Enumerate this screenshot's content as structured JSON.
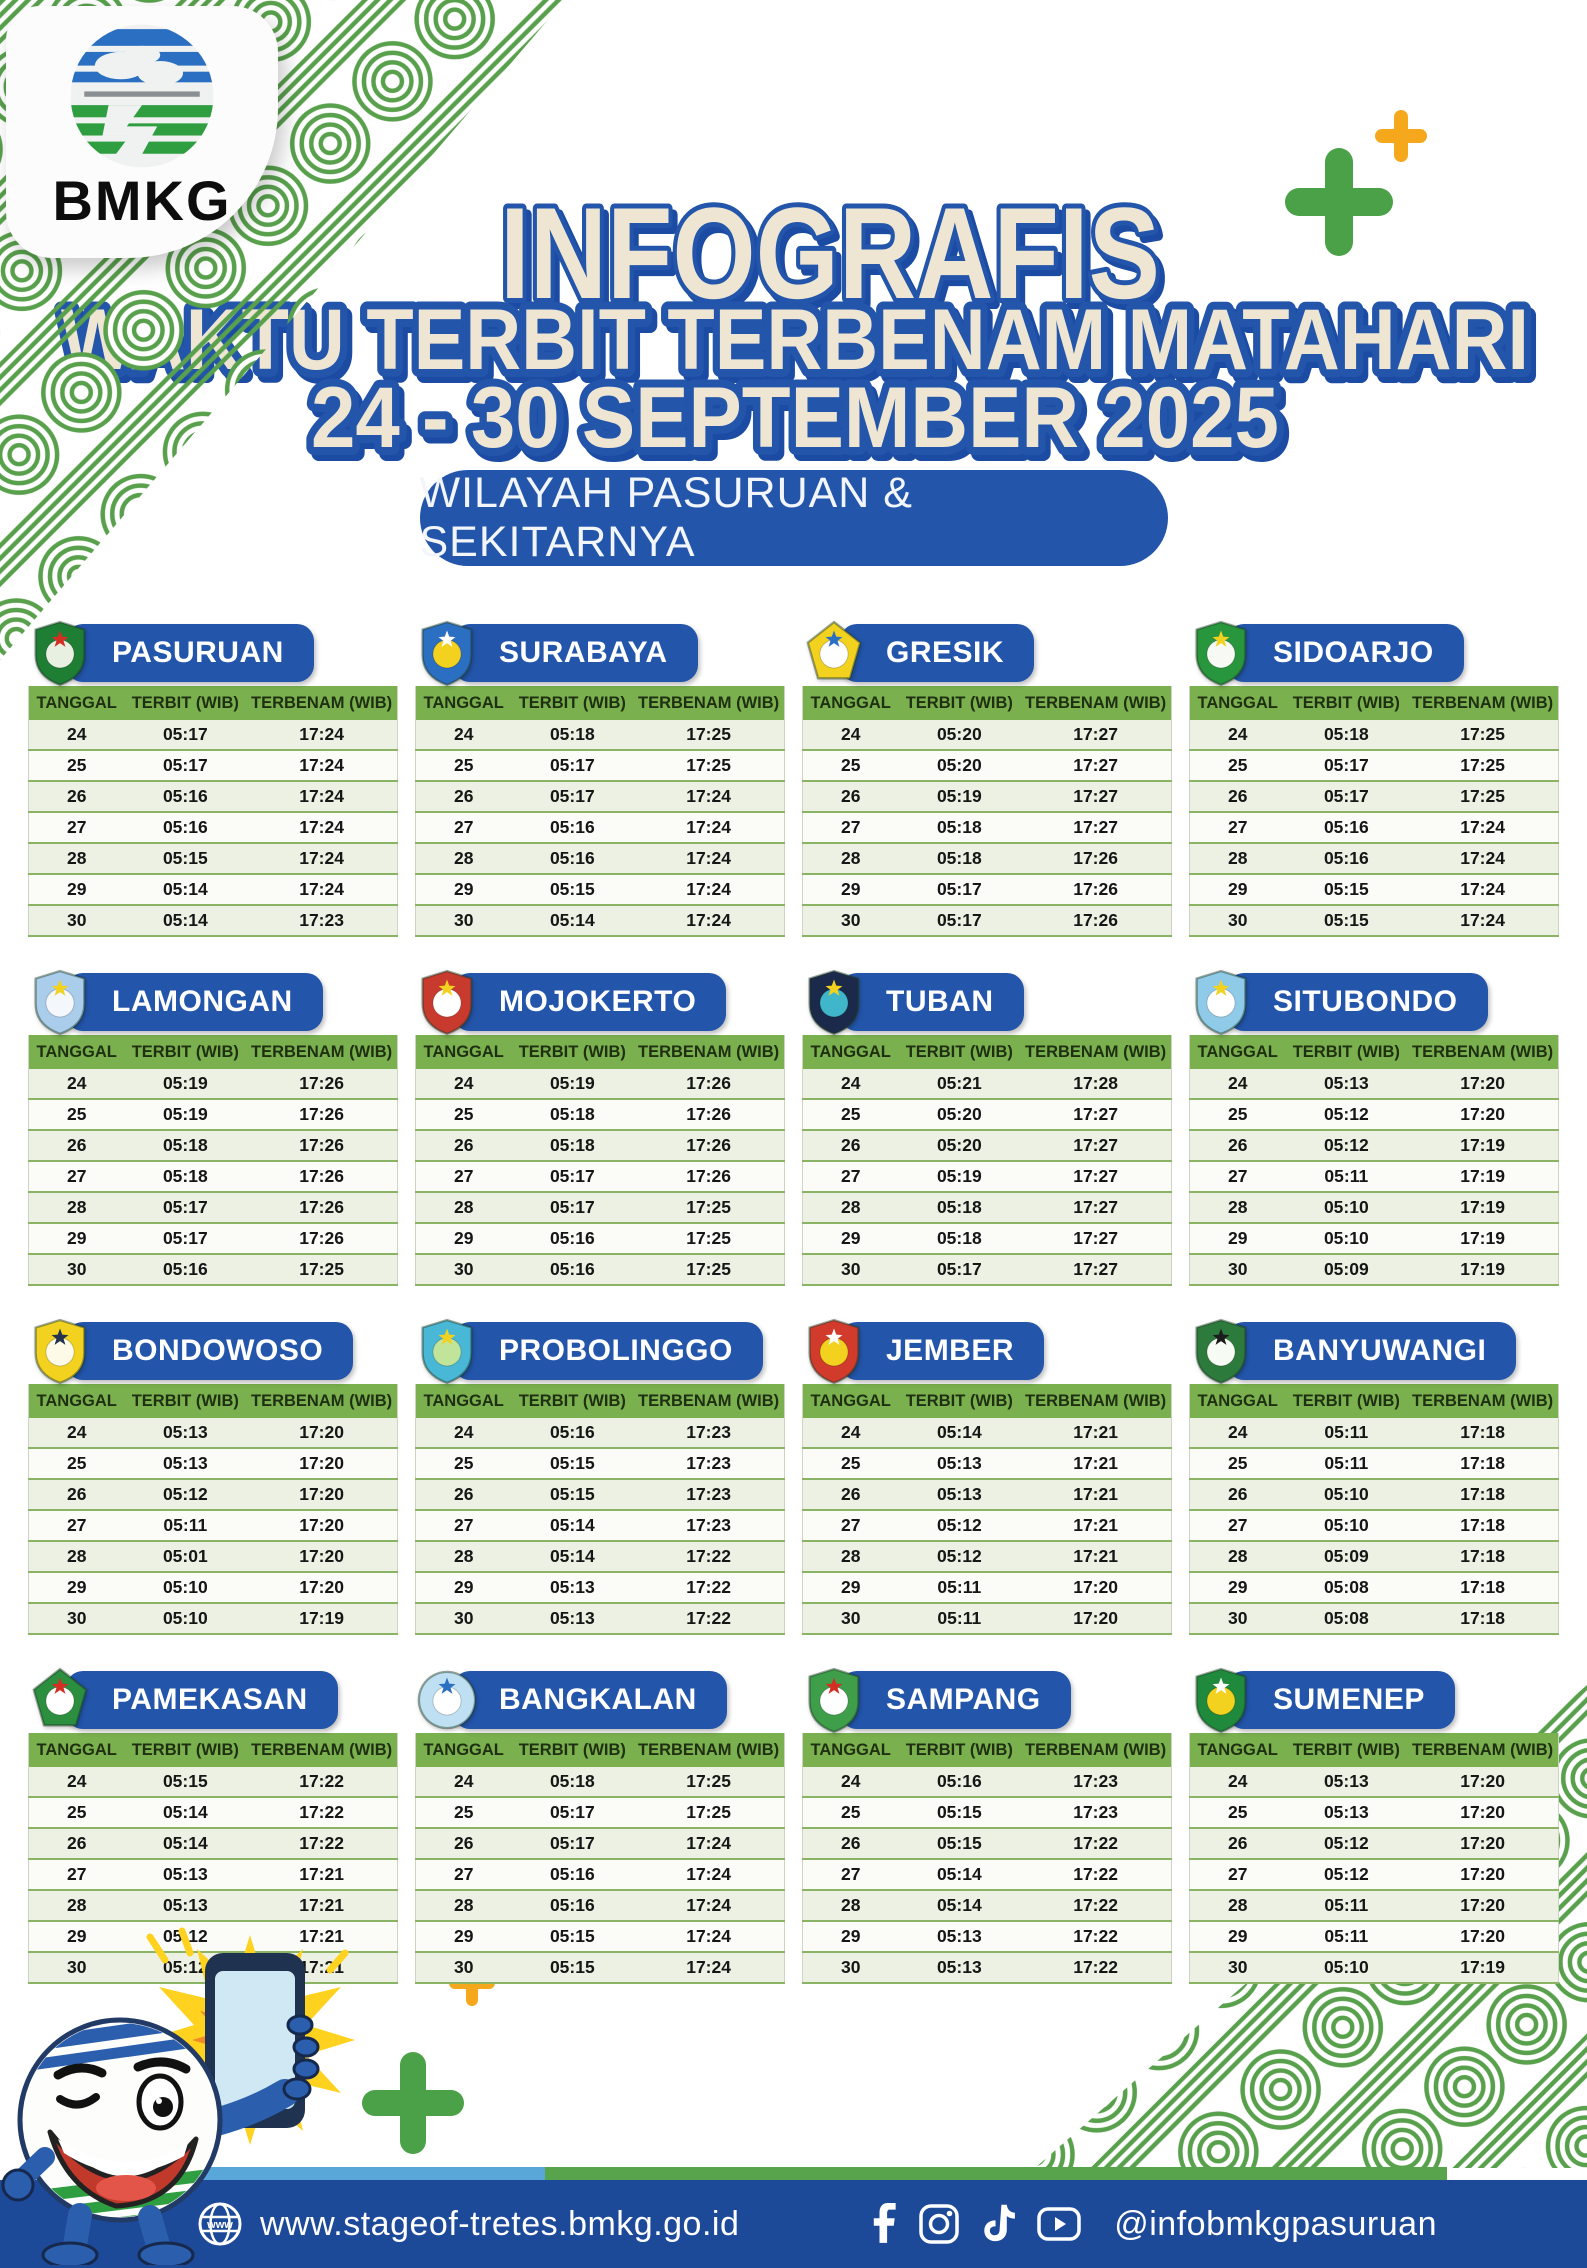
{
  "logo": {
    "text": "BMKG"
  },
  "header": {
    "title_line1": "INFOGRAFIS",
    "title_line2": "WAKTU TERBIT TERBENAM MATAHARI",
    "title_line3": "24 - 30 SEPTEMBER 2025",
    "region_pill": "WILAYAH PASURUAN & SEKITARNYA"
  },
  "table": {
    "columns": [
      "TANGGAL",
      "TERBIT (WIB)",
      "TERBENAM (WIB)"
    ]
  },
  "cities": [
    {
      "name": "PASURUAN",
      "crest": {
        "shape": "shield",
        "primary": "#1e7e34",
        "secondary": "#e8f0e2",
        "accent": "#d42f23"
      },
      "rows": [
        [
          "24",
          "05:17",
          "17:24"
        ],
        [
          "25",
          "05:17",
          "17:24"
        ],
        [
          "26",
          "05:16",
          "17:24"
        ],
        [
          "27",
          "05:16",
          "17:24"
        ],
        [
          "28",
          "05:15",
          "17:24"
        ],
        [
          "29",
          "05:14",
          "17:24"
        ],
        [
          "30",
          "05:14",
          "17:23"
        ]
      ]
    },
    {
      "name": "SURABAYA",
      "crest": {
        "shape": "shield",
        "primary": "#2b6fc3",
        "secondary": "#f2d21f",
        "accent": "#ffffff"
      },
      "rows": [
        [
          "24",
          "05:18",
          "17:25"
        ],
        [
          "25",
          "05:17",
          "17:25"
        ],
        [
          "26",
          "05:17",
          "17:24"
        ],
        [
          "27",
          "05:16",
          "17:24"
        ],
        [
          "28",
          "05:16",
          "17:24"
        ],
        [
          "29",
          "05:15",
          "17:24"
        ],
        [
          "30",
          "05:14",
          "17:24"
        ]
      ]
    },
    {
      "name": "GRESIK",
      "crest": {
        "shape": "pentagon",
        "primary": "#f2d21f",
        "secondary": "#ffffff",
        "accent": "#2b6fc3"
      },
      "rows": [
        [
          "24",
          "05:20",
          "17:27"
        ],
        [
          "25",
          "05:20",
          "17:27"
        ],
        [
          "26",
          "05:19",
          "17:27"
        ],
        [
          "27",
          "05:18",
          "17:27"
        ],
        [
          "28",
          "05:18",
          "17:26"
        ],
        [
          "29",
          "05:17",
          "17:26"
        ],
        [
          "30",
          "05:17",
          "17:26"
        ]
      ]
    },
    {
      "name": "SIDOARJO",
      "crest": {
        "shape": "shield",
        "primary": "#27963c",
        "secondary": "#f7f9f5",
        "accent": "#f2d21f"
      },
      "rows": [
        [
          "24",
          "05:18",
          "17:25"
        ],
        [
          "25",
          "05:17",
          "17:25"
        ],
        [
          "26",
          "05:17",
          "17:25"
        ],
        [
          "27",
          "05:16",
          "17:24"
        ],
        [
          "28",
          "05:16",
          "17:24"
        ],
        [
          "29",
          "05:15",
          "17:24"
        ],
        [
          "30",
          "05:15",
          "17:24"
        ]
      ]
    },
    {
      "name": "LAMONGAN",
      "crest": {
        "shape": "shield",
        "primary": "#aacdec",
        "secondary": "#f4f8fc",
        "accent": "#f2d21f"
      },
      "rows": [
        [
          "24",
          "05:19",
          "17:26"
        ],
        [
          "25",
          "05:19",
          "17:26"
        ],
        [
          "26",
          "05:18",
          "17:26"
        ],
        [
          "27",
          "05:18",
          "17:26"
        ],
        [
          "28",
          "05:17",
          "17:26"
        ],
        [
          "29",
          "05:17",
          "17:26"
        ],
        [
          "30",
          "05:16",
          "17:25"
        ]
      ]
    },
    {
      "name": "MOJOKERTO",
      "crest": {
        "shape": "shield",
        "primary": "#c93a2e",
        "secondary": "#ffffff",
        "accent": "#f2d21f"
      },
      "rows": [
        [
          "24",
          "05:19",
          "17:26"
        ],
        [
          "25",
          "05:18",
          "17:26"
        ],
        [
          "26",
          "05:18",
          "17:26"
        ],
        [
          "27",
          "05:17",
          "17:26"
        ],
        [
          "28",
          "05:17",
          "17:25"
        ],
        [
          "29",
          "05:16",
          "17:25"
        ],
        [
          "30",
          "05:16",
          "17:25"
        ]
      ]
    },
    {
      "name": "TUBAN",
      "crest": {
        "shape": "shield",
        "primary": "#1b2a4a",
        "secondary": "#3fb6c9",
        "accent": "#f2d21f"
      },
      "rows": [
        [
          "24",
          "05:21",
          "17:28"
        ],
        [
          "25",
          "05:20",
          "17:27"
        ],
        [
          "26",
          "05:20",
          "17:27"
        ],
        [
          "27",
          "05:19",
          "17:27"
        ],
        [
          "28",
          "05:18",
          "17:27"
        ],
        [
          "29",
          "05:18",
          "17:27"
        ],
        [
          "30",
          "05:17",
          "17:27"
        ]
      ]
    },
    {
      "name": "SITUBONDO",
      "crest": {
        "shape": "shield",
        "primary": "#8fcbe8",
        "secondary": "#ffffff",
        "accent": "#f2d21f"
      },
      "rows": [
        [
          "24",
          "05:13",
          "17:20"
        ],
        [
          "25",
          "05:12",
          "17:20"
        ],
        [
          "26",
          "05:12",
          "17:19"
        ],
        [
          "27",
          "05:11",
          "17:19"
        ],
        [
          "28",
          "05:10",
          "17:19"
        ],
        [
          "29",
          "05:10",
          "17:19"
        ],
        [
          "30",
          "05:09",
          "17:19"
        ]
      ]
    },
    {
      "name": "BONDOWOSO",
      "crest": {
        "shape": "shield",
        "primary": "#f2d21f",
        "secondary": "#fdfbe8",
        "accent": "#23324d"
      },
      "rows": [
        [
          "24",
          "05:13",
          "17:20"
        ],
        [
          "25",
          "05:13",
          "17:20"
        ],
        [
          "26",
          "05:12",
          "17:20"
        ],
        [
          "27",
          "05:11",
          "17:20"
        ],
        [
          "28",
          "05:01",
          "17:20"
        ],
        [
          "29",
          "05:10",
          "17:20"
        ],
        [
          "30",
          "05:10",
          "17:19"
        ]
      ]
    },
    {
      "name": "PROBOLINGGO",
      "crest": {
        "shape": "shield",
        "primary": "#49b7d6",
        "secondary": "#bfe49a",
        "accent": "#f2d21f"
      },
      "rows": [
        [
          "24",
          "05:16",
          "17:23"
        ],
        [
          "25",
          "05:15",
          "17:23"
        ],
        [
          "26",
          "05:15",
          "17:23"
        ],
        [
          "27",
          "05:14",
          "17:23"
        ],
        [
          "28",
          "05:14",
          "17:22"
        ],
        [
          "29",
          "05:13",
          "17:22"
        ],
        [
          "30",
          "05:13",
          "17:22"
        ]
      ]
    },
    {
      "name": "JEMBER",
      "crest": {
        "shape": "shield",
        "primary": "#d23b2b",
        "secondary": "#f2d21f",
        "accent": "#ffffff"
      },
      "rows": [
        [
          "24",
          "05:14",
          "17:21"
        ],
        [
          "25",
          "05:13",
          "17:21"
        ],
        [
          "26",
          "05:13",
          "17:21"
        ],
        [
          "27",
          "05:12",
          "17:21"
        ],
        [
          "28",
          "05:12",
          "17:21"
        ],
        [
          "29",
          "05:11",
          "17:20"
        ],
        [
          "30",
          "05:11",
          "17:20"
        ]
      ]
    },
    {
      "name": "BANYUWANGI",
      "crest": {
        "shape": "shield",
        "primary": "#2c7a3c",
        "secondary": "#f6fbf3",
        "accent": "#1c1c1c"
      },
      "rows": [
        [
          "24",
          "05:11",
          "17:18"
        ],
        [
          "25",
          "05:11",
          "17:18"
        ],
        [
          "26",
          "05:10",
          "17:18"
        ],
        [
          "27",
          "05:10",
          "17:18"
        ],
        [
          "28",
          "05:09",
          "17:18"
        ],
        [
          "29",
          "05:08",
          "17:18"
        ],
        [
          "30",
          "05:08",
          "17:18"
        ]
      ]
    },
    {
      "name": "PAMEKASAN",
      "crest": {
        "shape": "pentagon",
        "primary": "#2c8f3f",
        "secondary": "#ffffff",
        "accent": "#d42f23"
      },
      "rows": [
        [
          "24",
          "05:15",
          "17:22"
        ],
        [
          "25",
          "05:14",
          "17:22"
        ],
        [
          "26",
          "05:14",
          "17:22"
        ],
        [
          "27",
          "05:13",
          "17:21"
        ],
        [
          "28",
          "05:13",
          "17:21"
        ],
        [
          "29",
          "05:12",
          "17:21"
        ],
        [
          "30",
          "05:12",
          "17:21"
        ]
      ]
    },
    {
      "name": "BANGKALAN",
      "crest": {
        "shape": "circle",
        "primary": "#bfe0f2",
        "secondary": "#ffffff",
        "accent": "#2b6fc3"
      },
      "rows": [
        [
          "24",
          "05:18",
          "17:25"
        ],
        [
          "25",
          "05:17",
          "17:25"
        ],
        [
          "26",
          "05:17",
          "17:24"
        ],
        [
          "27",
          "05:16",
          "17:24"
        ],
        [
          "28",
          "05:16",
          "17:24"
        ],
        [
          "29",
          "05:15",
          "17:24"
        ],
        [
          "30",
          "05:15",
          "17:24"
        ]
      ]
    },
    {
      "name": "SAMPANG",
      "crest": {
        "shape": "shield",
        "primary": "#3f9e49",
        "secondary": "#ffffff",
        "accent": "#d42f23"
      },
      "rows": [
        [
          "24",
          "05:16",
          "17:23"
        ],
        [
          "25",
          "05:15",
          "17:23"
        ],
        [
          "26",
          "05:15",
          "17:22"
        ],
        [
          "27",
          "05:14",
          "17:22"
        ],
        [
          "28",
          "05:14",
          "17:22"
        ],
        [
          "29",
          "05:13",
          "17:22"
        ],
        [
          "30",
          "05:13",
          "17:22"
        ]
      ]
    },
    {
      "name": "SUMENEP",
      "crest": {
        "shape": "shield",
        "primary": "#1f8a3b",
        "secondary": "#f2d21f",
        "accent": "#ffffff"
      },
      "rows": [
        [
          "24",
          "05:13",
          "17:20"
        ],
        [
          "25",
          "05:13",
          "17:20"
        ],
        [
          "26",
          "05:12",
          "17:20"
        ],
        [
          "27",
          "05:12",
          "17:20"
        ],
        [
          "28",
          "05:11",
          "17:20"
        ],
        [
          "29",
          "05:11",
          "17:20"
        ],
        [
          "30",
          "05:10",
          "17:19"
        ]
      ]
    }
  ],
  "footer": {
    "globe_label": "www",
    "website": "www.stageof-tretes.bmkg.go.id",
    "handle": "@infobmkgpasuruan",
    "icons": [
      "globe-www-icon",
      "facebook-icon",
      "instagram-icon",
      "tiktok-icon",
      "youtube-icon"
    ]
  },
  "colors": {
    "brand_blue": "#2355ab",
    "footer_blue": "#1d4999",
    "cream": "#eee6d2",
    "table_header_green": "#7ab04e",
    "row_alt_green": "#edf1e3",
    "row_border_green": "#8ab364",
    "pattern_green": "#58a04c",
    "plus_green": "#4aa147",
    "plus_yellow": "#f6a81c",
    "strip_blue": "#58a7d8",
    "strip_green": "#57a44c"
  }
}
